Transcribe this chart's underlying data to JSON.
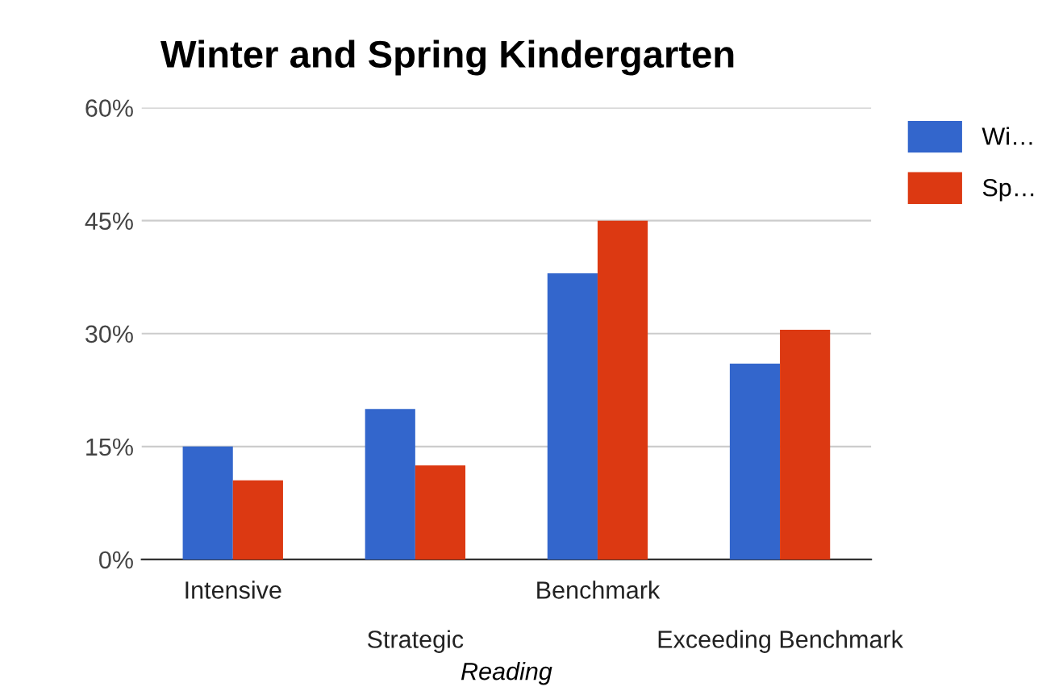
{
  "chart_data": {
    "type": "bar",
    "title": "Winter and Spring Kindergarten",
    "xlabel": "Reading",
    "categories": [
      "Intensive",
      "Strategic",
      "Benchmark",
      "Exceeding Benchmark"
    ],
    "series": [
      {
        "name": "Wi…",
        "color": "#3366cc",
        "values": [
          15,
          20,
          38,
          26
        ]
      },
      {
        "name": "Sp…",
        "color": "#dc3912",
        "values": [
          10.5,
          12.5,
          45,
          30.5
        ]
      }
    ],
    "ylim": [
      0,
      60
    ],
    "yticks": [
      {
        "value": 0,
        "label": "0%"
      },
      {
        "value": 15,
        "label": "15%"
      },
      {
        "value": 30,
        "label": "30%"
      },
      {
        "value": 45,
        "label": "45%"
      },
      {
        "value": 60,
        "label": "60%"
      }
    ],
    "grid": "y",
    "legend": "top right"
  }
}
